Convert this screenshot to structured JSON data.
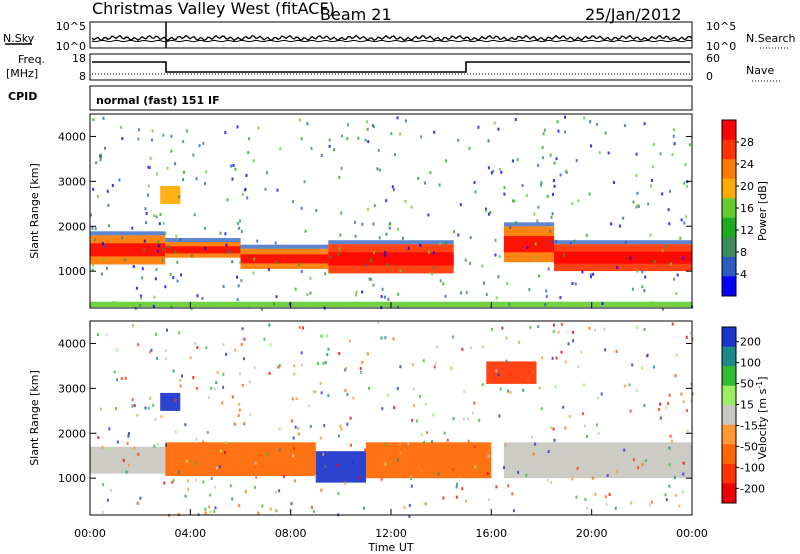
{
  "header": {
    "station": "Christmas Valley West (fitACF)",
    "beam": "Beam 21",
    "date": "25/Jan/2012"
  },
  "top_panels": {
    "nsky_label": "N.Sky",
    "nsearch_label": "N.Search",
    "freq_label_line1": "Freq.",
    "freq_label_line2": "[MHz]",
    "nave_label": "Nave",
    "cpid_label": "CPID",
    "cpid_value": "normal (fast) 151 IF",
    "noise_ticks_left": [
      "10^5",
      "10^0"
    ],
    "noise_ticks_right": [
      "10^5",
      "10^0"
    ],
    "freq_ticks_left": [
      "18",
      "8"
    ],
    "nave_ticks_right": [
      "60",
      "0"
    ]
  },
  "colors": {
    "power_scale": [
      "#0000ff",
      "#2a5cbf",
      "#3d8a5a",
      "#1faa1f",
      "#66cc33",
      "#ffaa00",
      "#ff7a00",
      "#ff3300",
      "#ff0000"
    ],
    "velocity_scale": [
      "#1a33cc",
      "#1a8a8a",
      "#33bb33",
      "#99ee66",
      "#c8c8c0",
      "#ff9933",
      "#ff6600",
      "#ff3300",
      "#ee0000"
    ],
    "ground_scatter": "#c8c8c0"
  },
  "chart_data": [
    {
      "type": "heatmap",
      "name": "power",
      "ylabel": "Slant Range [km]",
      "ylim": [
        180,
        4500
      ],
      "yticks": [
        "1000",
        "2000",
        "3000",
        "4000"
      ],
      "xticks": [
        "00:00",
        "04:00",
        "08:00",
        "12:00",
        "16:00",
        "20:00",
        "00:00"
      ],
      "colorbar_label": "Power [dB]",
      "colorbar_ticks": [
        "4",
        "8",
        "12",
        "16",
        "20",
        "24",
        "28"
      ],
      "bands": [
        {
          "t0": 0.0,
          "t1": 3.0,
          "r0": 1150,
          "r1": 1800,
          "level": 24
        },
        {
          "t0": 3.0,
          "t1": 6.0,
          "r0": 1300,
          "r1": 1650,
          "level": 22
        },
        {
          "t0": 6.0,
          "t1": 9.5,
          "r0": 1050,
          "r1": 1500,
          "level": 22
        },
        {
          "t0": 9.5,
          "t1": 14.5,
          "r0": 950,
          "r1": 1600,
          "level": 28
        },
        {
          "t0": 16.5,
          "t1": 18.5,
          "r0": 1200,
          "r1": 2000,
          "level": 24
        },
        {
          "t0": 18.5,
          "t1": 24.0,
          "r0": 1000,
          "r1": 1600,
          "level": 28
        },
        {
          "t0": 2.8,
          "t1": 3.6,
          "r0": 2500,
          "r1": 2900,
          "level": 20
        },
        {
          "t0": 0.0,
          "t1": 24.0,
          "r0": 200,
          "r1": 320,
          "level": 16
        }
      ]
    },
    {
      "type": "heatmap",
      "name": "velocity",
      "ylabel": "Slant Range [km]",
      "ylim": [
        180,
        4500
      ],
      "yticks": [
        "1000",
        "2000",
        "3000",
        "4000"
      ],
      "xlabel": "Time UT",
      "xticks": [
        "00:00",
        "04:00",
        "08:00",
        "12:00",
        "16:00",
        "20:00",
        "00:00"
      ],
      "colorbar_label": "Velocity [m s^-1]",
      "colorbar_ticks": [
        "200",
        "100",
        "50",
        "15",
        "-15",
        "-50",
        "-100",
        "-200"
      ],
      "bands": [
        {
          "t0": 0.0,
          "t1": 3.0,
          "r0": 1100,
          "r1": 1700,
          "level": 0
        },
        {
          "t0": 3.0,
          "t1": 9.0,
          "r0": 1050,
          "r1": 1800,
          "level": -60
        },
        {
          "t0": 9.0,
          "t1": 11.0,
          "r0": 900,
          "r1": 1600,
          "level": 150
        },
        {
          "t0": 11.0,
          "t1": 16.0,
          "r0": 1000,
          "r1": 1800,
          "level": -60
        },
        {
          "t0": 16.5,
          "t1": 24.0,
          "r0": 1000,
          "r1": 1800,
          "level": 0
        },
        {
          "t0": 2.8,
          "t1": 3.6,
          "r0": 2500,
          "r1": 2900,
          "level": 150
        },
        {
          "t0": 15.8,
          "t1": 17.8,
          "r0": 3100,
          "r1": 3600,
          "level": -150
        }
      ]
    }
  ]
}
